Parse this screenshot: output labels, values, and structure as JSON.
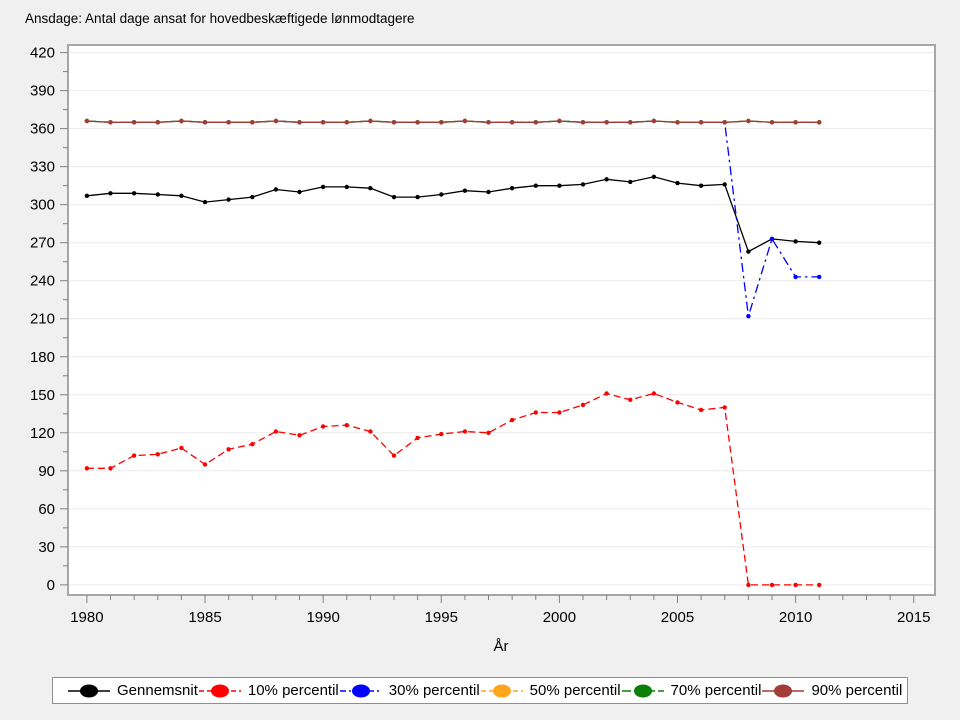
{
  "title": "Ansdage: Antal dage ansat for hovedbeskæftigede lønmodtagere",
  "colors": {
    "page_background": "#f0f0f0",
    "plot_background": "#ffffff",
    "plot_border": "#a6a6a6",
    "gridline": "#ececec",
    "tick": "#808080",
    "text": "#000000"
  },
  "chart_data": {
    "type": "line",
    "title": "Ansdage: Antal dage ansat for hovedbeskæftigede lønmodtagere",
    "xlabel": "År",
    "ylabel": "",
    "grid": "horizontal",
    "legend_position": "bottom",
    "xlim": [
      1979.2,
      2015.9
    ],
    "ylim": [
      -8,
      426
    ],
    "xticks": [
      1980,
      1985,
      1990,
      1995,
      2000,
      2005,
      2010,
      2015
    ],
    "yticks": [
      0,
      30,
      60,
      90,
      120,
      150,
      180,
      210,
      240,
      270,
      300,
      330,
      360,
      390,
      420
    ],
    "x": [
      1980,
      1981,
      1982,
      1983,
      1984,
      1985,
      1986,
      1987,
      1988,
      1989,
      1990,
      1991,
      1992,
      1993,
      1994,
      1995,
      1996,
      1997,
      1998,
      1999,
      2000,
      2001,
      2002,
      2003,
      2004,
      2005,
      2006,
      2007,
      2008,
      2009,
      2010,
      2011
    ],
    "series": [
      {
        "name": "Gennemsnit",
        "color": "#000000",
        "line_style": "solid",
        "values": [
          307,
          309,
          309,
          308,
          307,
          302,
          304,
          306,
          312,
          310,
          314,
          314,
          313,
          306,
          306,
          308,
          311,
          310,
          313,
          315,
          315,
          316,
          320,
          318,
          322,
          317,
          315,
          316,
          263,
          273,
          271,
          270
        ]
      },
      {
        "name": "10% percentil",
        "color": "#ff0000",
        "line_style": "dashed",
        "values": [
          92,
          92,
          102,
          103,
          108,
          95,
          107,
          111,
          121,
          118,
          125,
          126,
          121,
          102,
          116,
          119,
          121,
          120,
          130,
          136,
          136,
          142,
          151,
          146,
          151,
          144,
          138,
          140,
          0,
          0,
          0,
          0
        ]
      },
      {
        "name": "30% percentil",
        "color": "#0000ff",
        "line_style": "dashdot",
        "values": [
          366,
          365,
          365,
          365,
          366,
          365,
          365,
          365,
          366,
          365,
          365,
          365,
          366,
          365,
          365,
          365,
          366,
          365,
          365,
          365,
          366,
          365,
          365,
          365,
          366,
          365,
          365,
          365,
          212,
          273,
          243,
          243
        ]
      },
      {
        "name": "50% percentil",
        "color": "#ffa51e",
        "line_style": "dashed",
        "values": [
          366,
          365,
          365,
          365,
          366,
          365,
          365,
          365,
          366,
          365,
          365,
          365,
          366,
          365,
          365,
          365,
          366,
          365,
          365,
          365,
          366,
          365,
          365,
          365,
          366,
          365,
          365,
          365,
          366,
          365,
          365,
          365
        ]
      },
      {
        "name": "70% percentil",
        "color": "#0b8009",
        "line_style": "longdash",
        "values": [
          366,
          365,
          365,
          365,
          366,
          365,
          365,
          365,
          366,
          365,
          365,
          365,
          366,
          365,
          365,
          365,
          366,
          365,
          365,
          365,
          366,
          365,
          365,
          365,
          366,
          365,
          365,
          365,
          366,
          365,
          365,
          365
        ]
      },
      {
        "name": "90% percentil",
        "color": "#a33b36",
        "line_style": "solid",
        "values": [
          366,
          365,
          365,
          365,
          366,
          365,
          365,
          365,
          366,
          365,
          365,
          365,
          366,
          365,
          365,
          365,
          366,
          365,
          365,
          365,
          366,
          365,
          365,
          365,
          366,
          365,
          365,
          365,
          366,
          365,
          365,
          365
        ]
      }
    ]
  }
}
